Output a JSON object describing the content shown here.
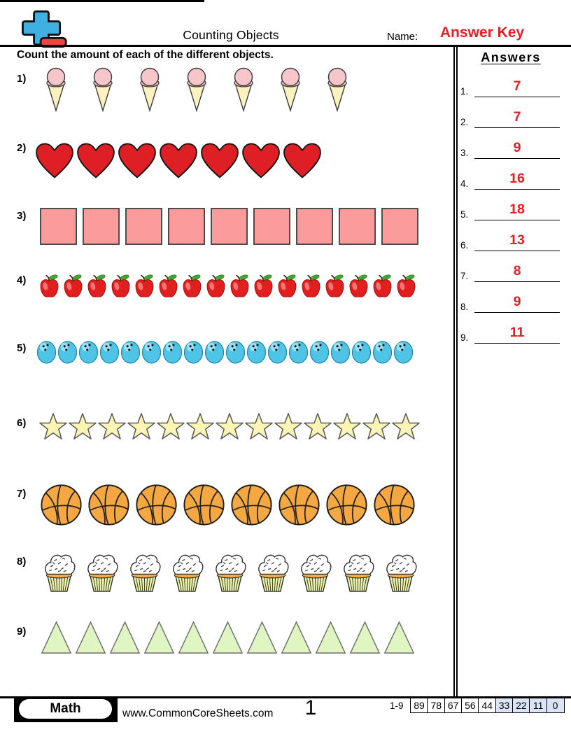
{
  "header": {
    "title": "Counting Objects",
    "name_label": "Name:",
    "name_value": "Answer Key",
    "instruction": "Count the amount of each of the different objects.",
    "answers_title": "Answers"
  },
  "problems": [
    {
      "number": "1)",
      "answer_label": "1.",
      "object": "ice-cream-cone",
      "count": 7,
      "answer": "7"
    },
    {
      "number": "2)",
      "answer_label": "2.",
      "object": "heart",
      "count": 7,
      "answer": "7"
    },
    {
      "number": "3)",
      "answer_label": "3.",
      "object": "square",
      "count": 9,
      "answer": "9"
    },
    {
      "number": "4)",
      "answer_label": "4.",
      "object": "apple",
      "count": 16,
      "answer": "16"
    },
    {
      "number": "5)",
      "answer_label": "5.",
      "object": "bowling-ball",
      "count": 18,
      "answer": "18"
    },
    {
      "number": "6)",
      "answer_label": "6.",
      "object": "star",
      "count": 13,
      "answer": "13"
    },
    {
      "number": "7)",
      "answer_label": "7.",
      "object": "basketball",
      "count": 8,
      "answer": "8"
    },
    {
      "number": "8)",
      "answer_label": "8.",
      "object": "cupcake",
      "count": 9,
      "answer": "9"
    },
    {
      "number": "9)",
      "answer_label": "9.",
      "object": "triangle",
      "count": 11,
      "answer": "11"
    }
  ],
  "footer": {
    "subject": "Math",
    "website": "www.CommonCoreSheets.com",
    "page_number": "1",
    "score_range_label": "1-9",
    "score_cells": [
      {
        "value": "89",
        "highlight": false
      },
      {
        "value": "78",
        "highlight": false
      },
      {
        "value": "67",
        "highlight": false
      },
      {
        "value": "56",
        "highlight": false
      },
      {
        "value": "44",
        "highlight": false
      },
      {
        "value": "33",
        "highlight": true
      },
      {
        "value": "22",
        "highlight": true
      },
      {
        "value": "11",
        "highlight": true
      },
      {
        "value": "0",
        "highlight": true
      }
    ]
  },
  "colors": {
    "answer_red": "#ec1c24",
    "logo_blue": "#3fb0e0",
    "logo_red": "#f04343",
    "score_highlight": "#d9e4f6",
    "heart_red": "#de1f26",
    "square_pink": "#fc9b9b",
    "bowling_blue": "#4fc4e4",
    "star_yellow": "#fbf5b5",
    "basketball_orange": "#f5a842",
    "triangle_green": "#dff5c2"
  }
}
